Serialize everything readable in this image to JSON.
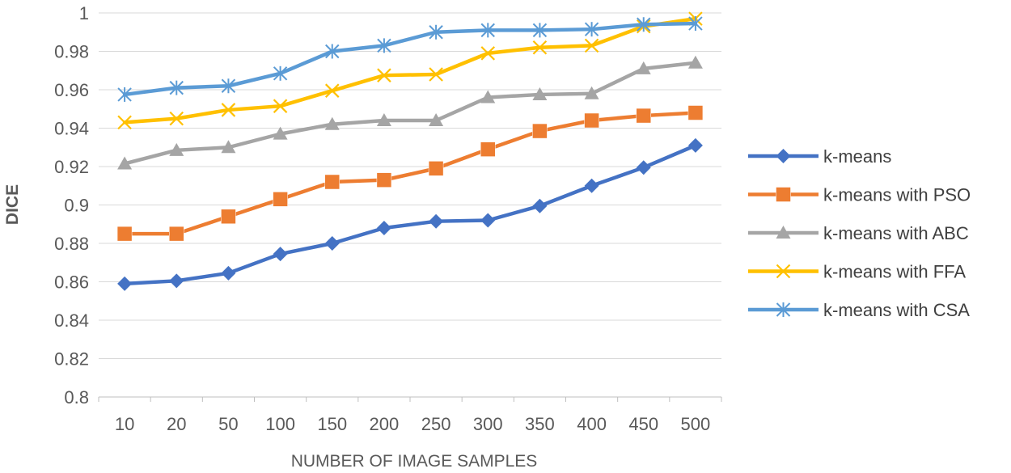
{
  "chart_data": {
    "type": "line",
    "title": "",
    "xlabel": "NUMBER OF IMAGE SAMPLES",
    "ylabel": "DICE",
    "categories": [
      "10",
      "20",
      "50",
      "100",
      "150",
      "200",
      "250",
      "300",
      "350",
      "400",
      "450",
      "500"
    ],
    "ylim": [
      0.8,
      1.0
    ],
    "yticks": [
      0.8,
      0.82,
      0.84,
      0.86,
      0.88,
      0.9,
      0.92,
      0.94,
      0.96,
      0.98,
      1.0
    ],
    "ytick_labels": [
      "0.8",
      "0.82",
      "0.84",
      "0.86",
      "0.88",
      "0.9",
      "0.92",
      "0.94",
      "0.96",
      "0.98",
      "1"
    ],
    "grid": "horizontal",
    "legend_position": "right",
    "series": [
      {
        "name": "k-means",
        "color": "#4472C4",
        "marker": "diamond",
        "values": [
          0.859,
          0.8605,
          0.8645,
          0.8745,
          0.88,
          0.888,
          0.8915,
          0.892,
          0.8995,
          0.91,
          0.9195,
          0.931
        ]
      },
      {
        "name": "k-means with PSO",
        "color": "#ED7D31",
        "marker": "square",
        "values": [
          0.885,
          0.885,
          0.894,
          0.903,
          0.912,
          0.913,
          0.919,
          0.929,
          0.9385,
          0.944,
          0.9465,
          0.948
        ]
      },
      {
        "name": "k-means with ABC",
        "color": "#A5A5A5",
        "marker": "triangle",
        "values": [
          0.9215,
          0.9285,
          0.93,
          0.937,
          0.942,
          0.944,
          0.944,
          0.956,
          0.9575,
          0.958,
          0.971,
          0.974
        ]
      },
      {
        "name": "k-means with FFA",
        "color": "#FFC000",
        "marker": "x",
        "values": [
          0.943,
          0.945,
          0.9495,
          0.9515,
          0.9595,
          0.9675,
          0.968,
          0.979,
          0.982,
          0.983,
          0.993,
          0.997
        ]
      },
      {
        "name": "k-means with CSA",
        "color": "#5B9BD5",
        "marker": "star",
        "values": [
          0.9575,
          0.961,
          0.962,
          0.9685,
          0.98,
          0.983,
          0.99,
          0.991,
          0.991,
          0.9915,
          0.994,
          0.9945
        ]
      }
    ]
  }
}
